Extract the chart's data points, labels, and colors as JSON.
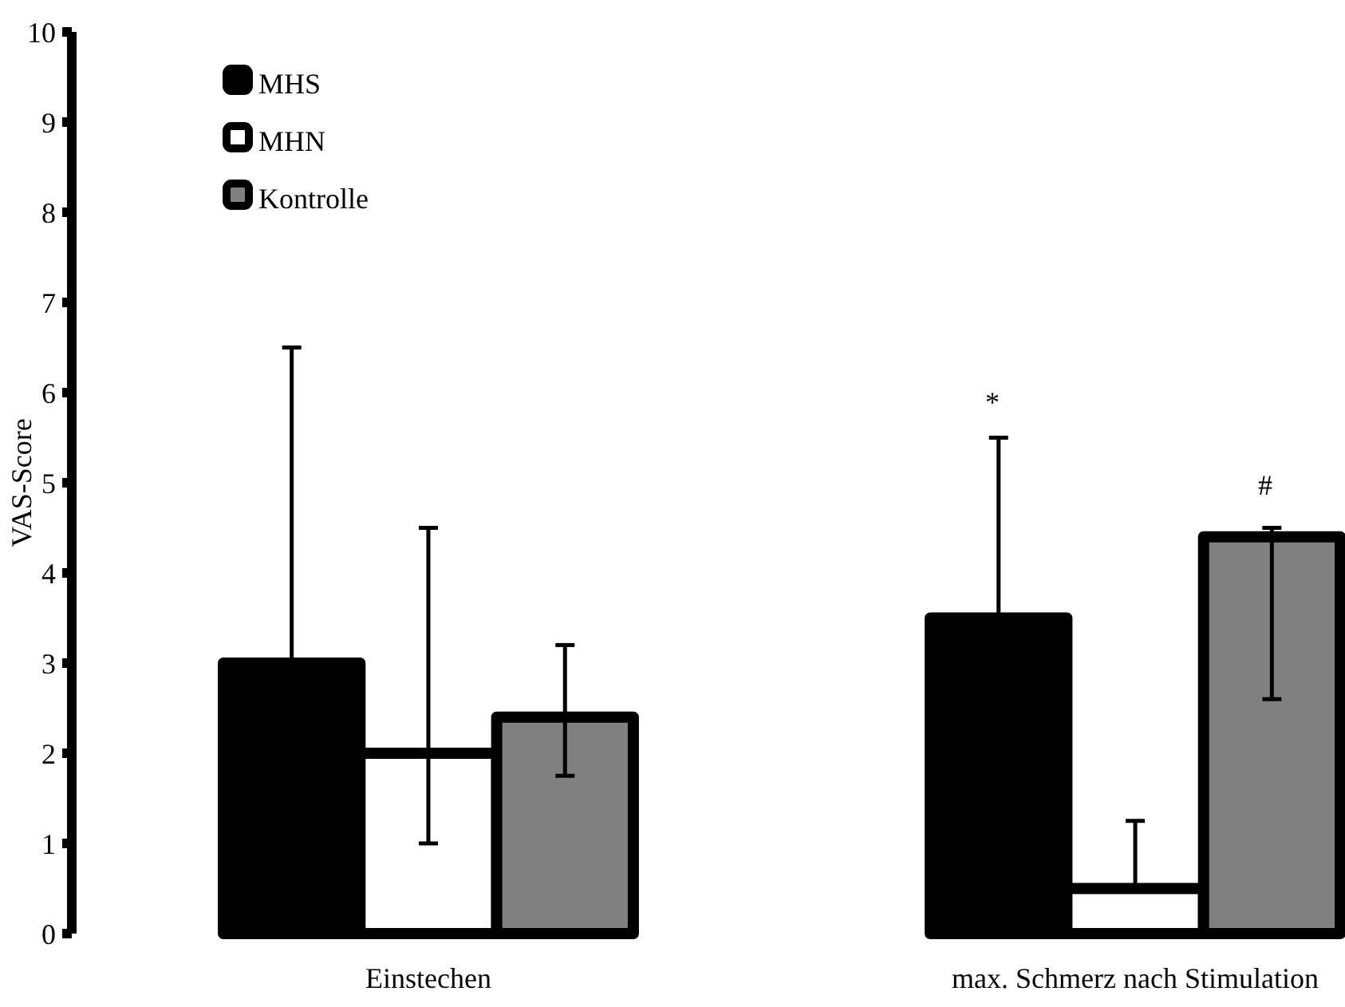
{
  "chart_data": {
    "type": "bar",
    "ylabel": "VAS-Score",
    "categories": [
      "Einstechen",
      "max. Schmerz nach Stimulation"
    ],
    "series": [
      {
        "name": "MHS",
        "color": "#000000",
        "values": [
          3,
          3.5
        ],
        "errors": [
          [
            3,
            6.5
          ],
          [
            3.5,
            5.5
          ]
        ]
      },
      {
        "name": "MHN",
        "color": "#ffffff",
        "values": [
          2,
          0.5
        ],
        "errors": [
          [
            1,
            4.5
          ],
          [
            0.5,
            1.25
          ]
        ]
      },
      {
        "name": "Kontrolle",
        "color": "#808080",
        "values": [
          2.4,
          4.4
        ],
        "errors": [
          [
            1.75,
            3.2
          ],
          [
            2.6,
            4.5
          ]
        ]
      }
    ],
    "ylim": [
      0,
      10
    ],
    "yticks": [
      0,
      1,
      2,
      3,
      4,
      5,
      6,
      7,
      8,
      9,
      10
    ],
    "grid": false,
    "legend": "top left",
    "annotations": [
      "*",
      "#"
    ]
  }
}
